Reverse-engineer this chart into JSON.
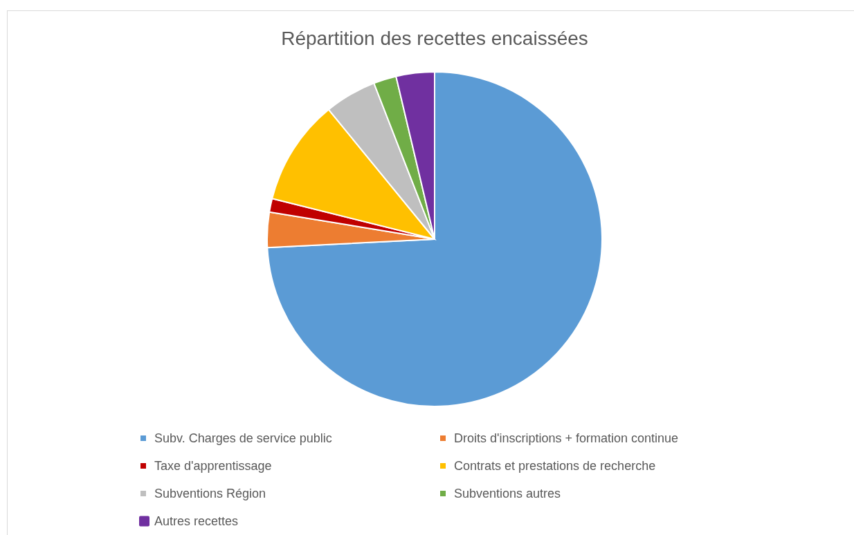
{
  "chart_data": {
    "type": "pie",
    "title": "Répartition des recettes encaissées",
    "categories": [
      "Subv. Charges de service public",
      "Droits d'inscriptions + formation continue",
      "Taxe d'apprentissage",
      "Contrats et prestations de recherche",
      "Subventions Région",
      "Subventions autres",
      "Autres recettes"
    ],
    "values": [
      74.2,
      3.4,
      1.3,
      10.2,
      5.0,
      2.2,
      3.7
    ],
    "colors": [
      "#5b9bd5",
      "#ed7d31",
      "#c00000",
      "#ffc000",
      "#bfbfbf",
      "#70ad47",
      "#7030a0"
    ],
    "legend": "bottom"
  }
}
